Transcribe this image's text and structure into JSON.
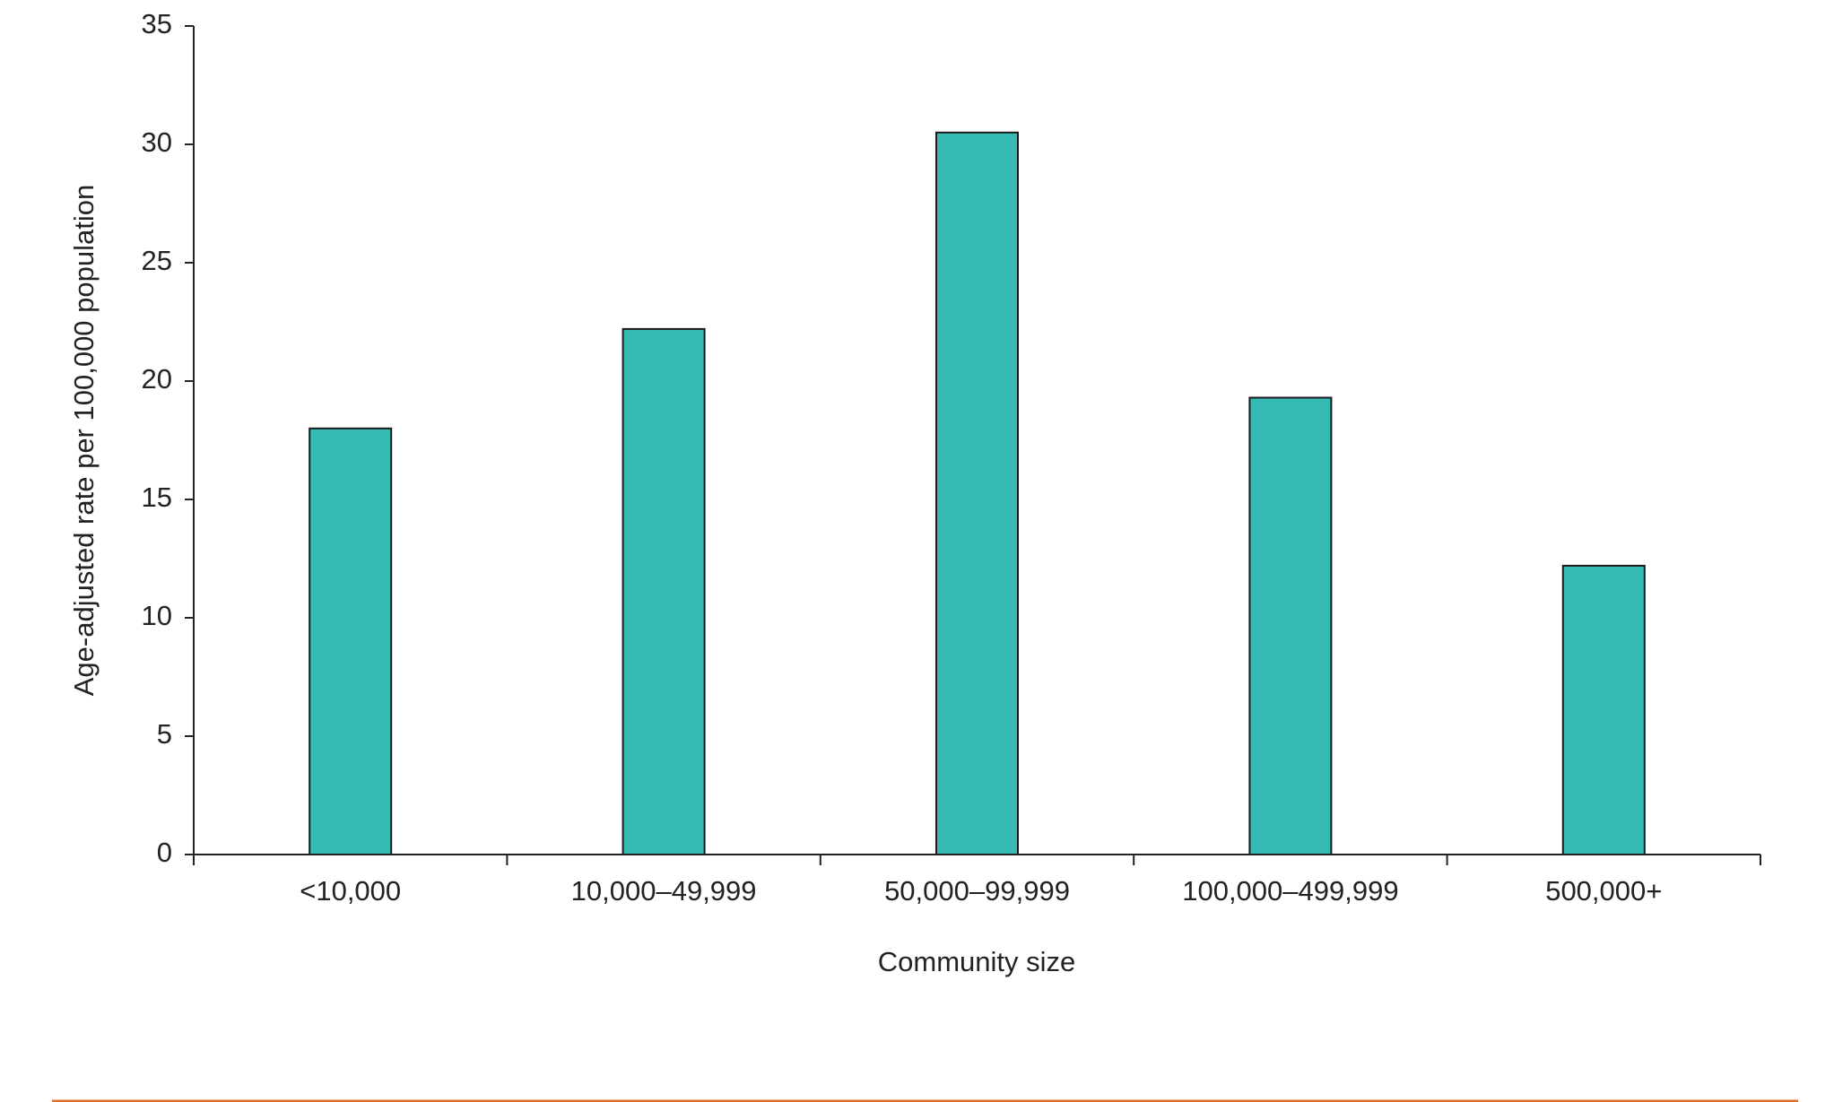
{
  "chart_data": {
    "type": "bar",
    "categories": [
      "<10,000",
      "10,000–49,999",
      "50,000–99,999",
      "100,000–499,999",
      "500,000+"
    ],
    "values": [
      18.0,
      22.2,
      30.5,
      19.3,
      12.2
    ],
    "title": "",
    "xlabel": "Community size",
    "ylabel": "Age-adjusted rate per 100,000 population",
    "ylim": [
      0,
      35
    ],
    "yticks": [
      0,
      5,
      10,
      15,
      20,
      25,
      30,
      35
    ],
    "ytick_labels": [
      "0",
      "5",
      "10",
      "15",
      "20",
      "25",
      "30",
      "35"
    ],
    "grid": false,
    "legend": "none",
    "colors": {
      "bar_fill": "#35bbb4",
      "bar_stroke": "#1a1a1a",
      "axis": "#222222",
      "footer_rule": "#e07028"
    }
  }
}
